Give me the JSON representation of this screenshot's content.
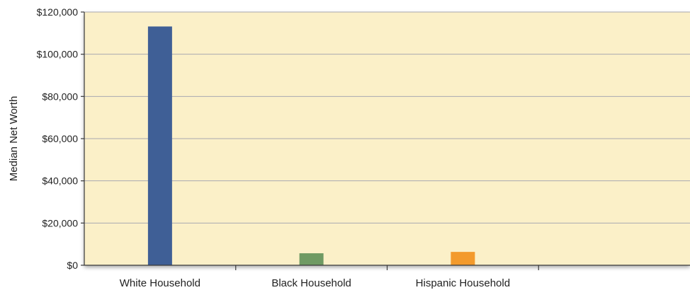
{
  "chart_data": {
    "type": "bar",
    "title": "",
    "xlabel": "",
    "ylabel": "Median Net Worth",
    "ylim": [
      0,
      120000
    ],
    "yticks": [
      0,
      20000,
      40000,
      60000,
      80000,
      100000,
      120000
    ],
    "ytick_labels": [
      "$0",
      "$20,000",
      "$40,000",
      "$60,000",
      "$80,000",
      "$100,000",
      "$120,000"
    ],
    "categories": [
      "White Household",
      "Black Household",
      "Hispanic Household",
      ""
    ],
    "values": [
      113149,
      5677,
      6325,
      null
    ],
    "bar_colors": [
      "#3f5f96",
      "#6f9a63",
      "#f39a2c",
      ""
    ],
    "grid": true,
    "plot_background": "#fbf0c8",
    "grid_color": "#a9a9b0",
    "axis_color": "#3a3a3a"
  }
}
